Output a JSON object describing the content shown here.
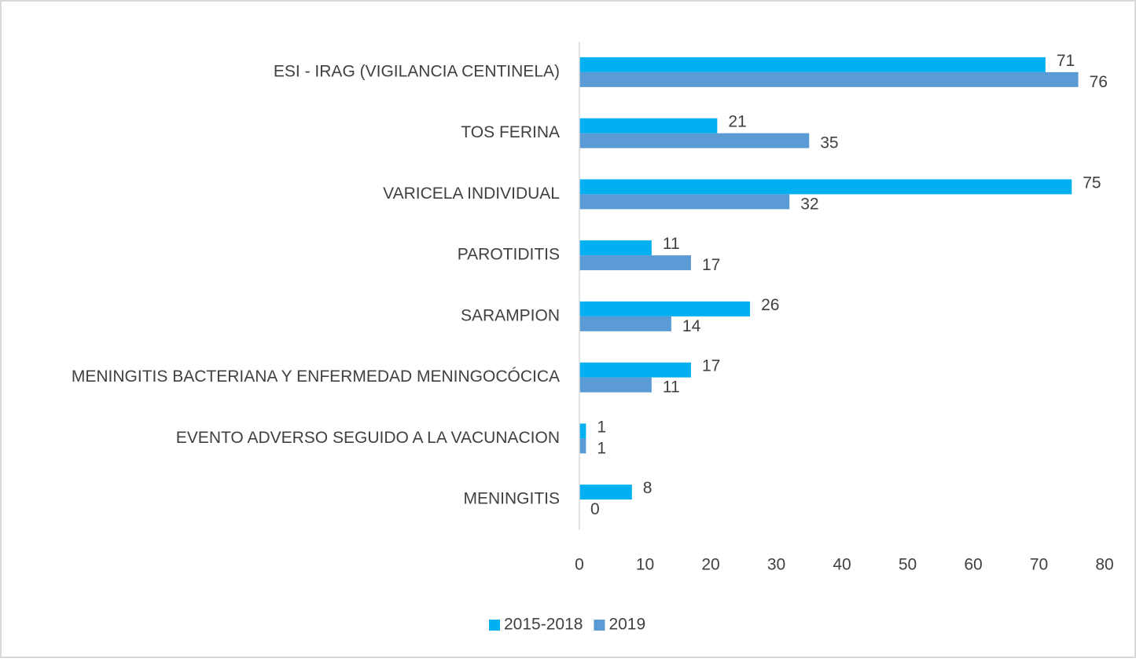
{
  "chart_data": {
    "type": "bar",
    "orientation": "horizontal",
    "categories": [
      "ESI - IRAG (VIGILANCIA CENTINELA)",
      "TOS FERINA",
      "VARICELA INDIVIDUAL",
      "PAROTIDITIS",
      "SARAMPION",
      "MENINGITIS BACTERIANA Y ENFERMEDAD MENINGOCÓCICA",
      "EVENTO ADVERSO SEGUIDO A LA VACUNACION",
      "MENINGITIS"
    ],
    "series": [
      {
        "name": "2015-2018",
        "color": "#00b0f0",
        "values": [
          71,
          21,
          75,
          11,
          26,
          17,
          1,
          8
        ]
      },
      {
        "name": "2019",
        "color": "#5b9bd5",
        "values": [
          76,
          35,
          32,
          17,
          14,
          11,
          1,
          0
        ]
      }
    ],
    "xlim": [
      0,
      80
    ],
    "xticks": [
      0,
      10,
      20,
      30,
      40,
      50,
      60,
      70,
      80
    ],
    "grid": false,
    "legend": "bottom"
  }
}
